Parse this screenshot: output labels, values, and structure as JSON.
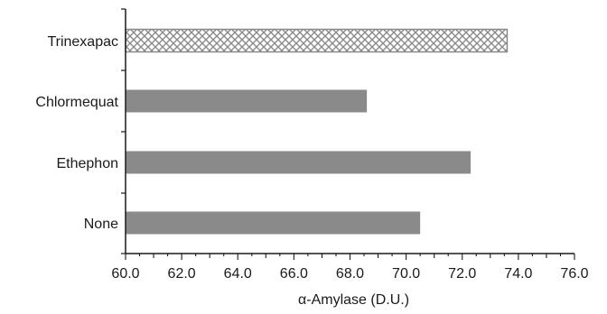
{
  "chart_data": {
    "type": "bar",
    "orientation": "horizontal",
    "categories": [
      "Trinexapac",
      "Chlormequat",
      "Ethephon",
      "None"
    ],
    "values": [
      73.6,
      68.6,
      72.3,
      70.5
    ],
    "xlabel": "α-Amylase (D.U.)",
    "ylabel": "",
    "xlim": [
      60.0,
      76.0
    ],
    "xticks": [
      "60.0",
      "62.0",
      "64.0",
      "66.0",
      "68.0",
      "70.0",
      "72.0",
      "74.0",
      "76.0"
    ],
    "grid": false,
    "bar_styles": [
      "crosshatch",
      "solid",
      "solid",
      "solid"
    ],
    "colors": {
      "bar": "#8a8a8a",
      "axis": "#1a1a1a",
      "hatch": "#8a8a8a"
    }
  }
}
